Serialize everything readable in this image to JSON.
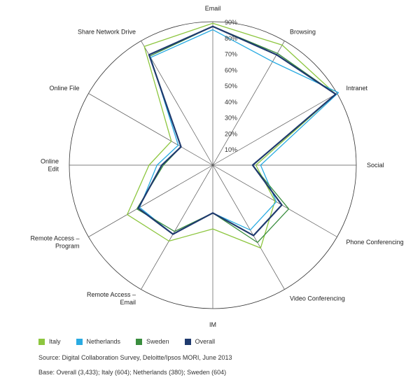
{
  "chart_data": {
    "type": "radar",
    "axes": [
      "Email",
      "Browsing",
      "Intranet",
      "Social",
      "Phone Conferencing",
      "Video Conferencing",
      "IM",
      "Remote Access – Email",
      "Remote Access – Program",
      "Online Edit",
      "Online File",
      "Share Network Drive"
    ],
    "ticks": [
      "10%",
      "20%",
      "30%",
      "40%",
      "50%",
      "60%",
      "70%",
      "80%",
      "90%"
    ],
    "rlim": [
      0,
      90
    ],
    "series": [
      {
        "name": "Italy",
        "color": "#8dc63f",
        "values": [
          89,
          87,
          89,
          27,
          45,
          60,
          40,
          55,
          62,
          40,
          30,
          86
        ]
      },
      {
        "name": "Netherlands",
        "color": "#29abe2",
        "values": [
          85,
          75,
          91,
          30,
          46,
          47,
          30,
          50,
          53,
          35,
          25,
          78
        ]
      },
      {
        "name": "Sweden",
        "color": "#3a8e3e",
        "values": [
          87,
          81,
          89,
          25,
          55,
          56,
          30,
          48,
          55,
          31,
          23,
          79
        ]
      },
      {
        "name": "Overall",
        "color": "#1f3a6e",
        "values": [
          87,
          80,
          89,
          25,
          50,
          51,
          30,
          50,
          54,
          32,
          23,
          80
        ]
      }
    ],
    "source": "Source: Digital Collaboration Survey, Deloitte/Ipsos MORI, June 2013",
    "base": "Base: Overall (3,433); Italy (604); Netherlands (380); Sweden (604)"
  }
}
